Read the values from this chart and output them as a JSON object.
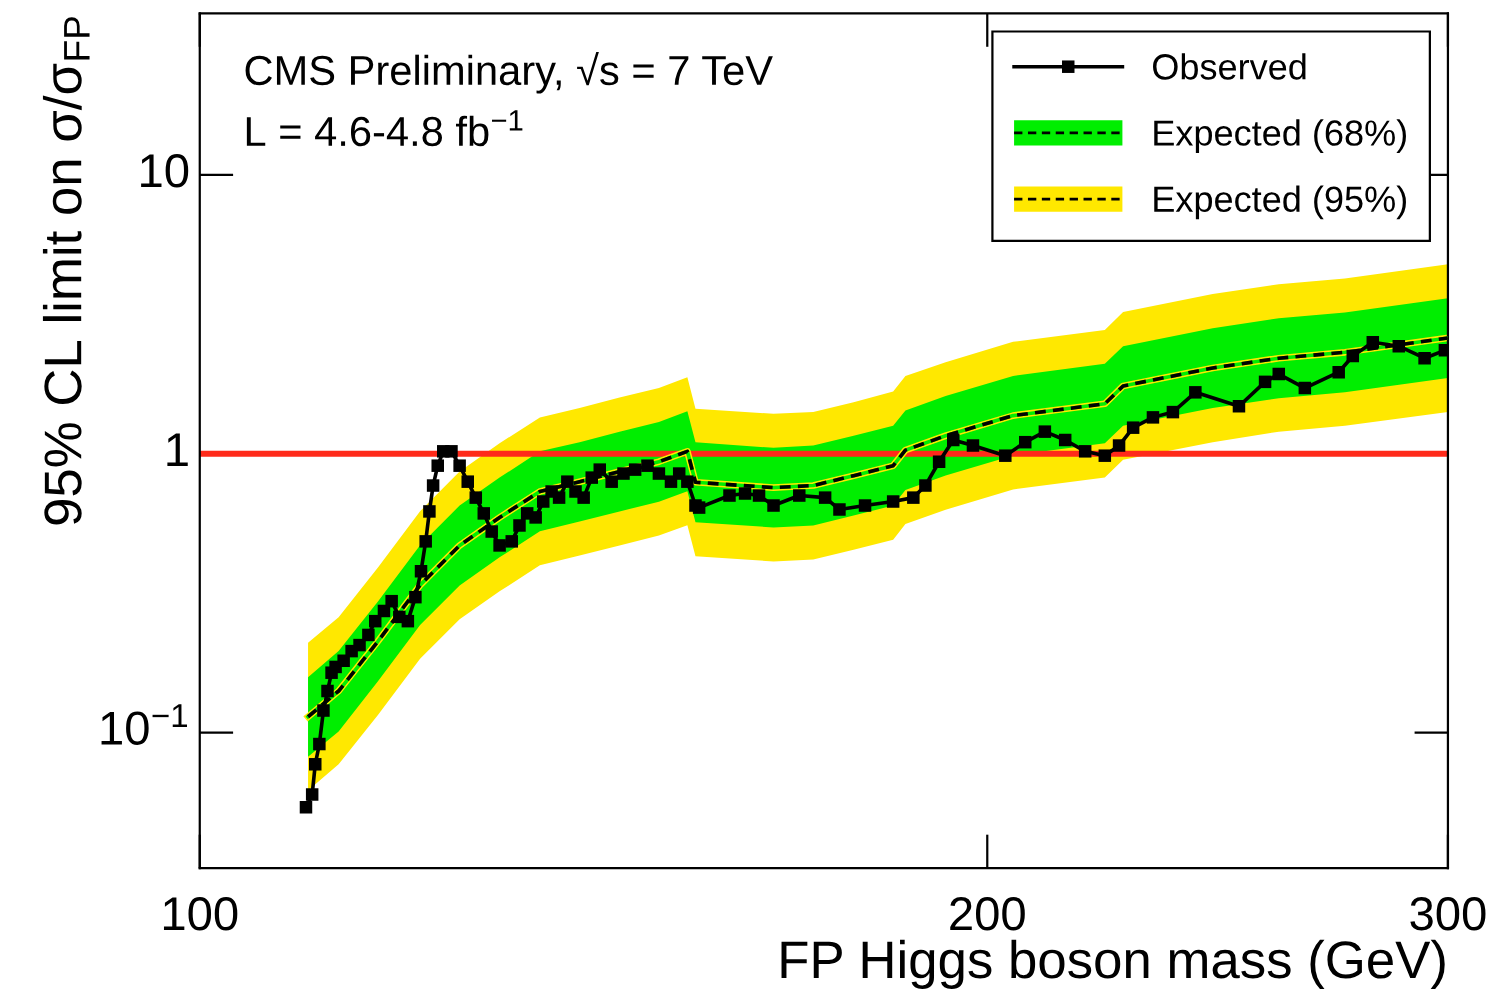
{
  "chart_data": {
    "type": "line",
    "xlabel": "FP Higgs boson mass (GeV)",
    "ylabel": "95% CL limit on σ/σ$_{FP}$",
    "annotations": [
      "CMS Preliminary, √s = 7 TeV",
      "L = 4.6-4.8 fb$^{−1}$"
    ],
    "log": "xy",
    "xlim": [
      100,
      300
    ],
    "ylim": [
      0.0327,
      37.9
    ],
    "xticks": [
      100,
      200,
      300
    ],
    "yticks": [
      {
        "value": 0.1,
        "label": "10$^{−1}$"
      },
      1,
      10
    ],
    "grid": false,
    "legend": "top right",
    "ref_lines": [
      {
        "axis": "y",
        "value": 1,
        "color": "#ff2a1a",
        "line_style": "solid"
      }
    ],
    "series": [
      {
        "name": "Expected (95%)",
        "type": "line",
        "line_style": "solid",
        "color": "#ffe800",
        "x": [
          110,
          113,
          117,
          121.4,
          125.7,
          130.2,
          134.9,
          139.7,
          144.7,
          149.8,
          153.6,
          154.7,
          165.7,
          171.6,
          177.8,
          184.1,
          186.1,
          192.8,
          204.6,
          221.8,
          225.4,
          243.9,
          258.5,
          274,
          300
        ],
        "values": [
          0.114,
          0.141,
          0.213,
          0.338,
          0.469,
          0.591,
          0.732,
          0.794,
          0.863,
          0.936,
          1.02,
          0.79,
          0.756,
          0.769,
          0.834,
          0.906,
          1.03,
          1.16,
          1.37,
          1.51,
          1.75,
          2.03,
          2.2,
          2.31,
          2.6
        ],
        "lower": [
          0.062,
          0.077,
          0.116,
          0.184,
          0.255,
          0.321,
          0.398,
          0.432,
          0.469,
          0.509,
          0.554,
          0.429,
          0.411,
          0.418,
          0.453,
          0.492,
          0.56,
          0.63,
          0.745,
          0.821,
          0.951,
          1.1,
          1.2,
          1.26,
          1.41
        ],
        "upper": [
          0.21,
          0.259,
          0.392,
          0.622,
          0.863,
          1.09,
          1.35,
          1.46,
          1.59,
          1.72,
          1.88,
          1.45,
          1.39,
          1.41,
          1.53,
          1.67,
          1.9,
          2.13,
          2.52,
          2.78,
          3.22,
          3.74,
          4.05,
          4.25,
          4.78
        ]
      },
      {
        "name": "Expected (68%)",
        "type": "line",
        "line_style": "solid",
        "color": "#00ee00",
        "x": [
          110,
          113,
          117,
          121.4,
          125.7,
          130.2,
          134.9,
          139.7,
          144.7,
          149.8,
          153.6,
          154.7,
          165.7,
          171.6,
          177.8,
          184.1,
          186.1,
          192.8,
          204.6,
          221.8,
          225.4,
          243.9,
          258.5,
          274,
          300
        ],
        "values": [
          0.114,
          0.141,
          0.213,
          0.338,
          0.469,
          0.591,
          0.732,
          0.794,
          0.863,
          0.936,
          1.02,
          0.79,
          0.756,
          0.769,
          0.834,
          0.906,
          1.03,
          1.16,
          1.37,
          1.51,
          1.75,
          2.03,
          2.2,
          2.31,
          2.6
        ],
        "lower": [
          0.082,
          0.101,
          0.153,
          0.243,
          0.337,
          0.425,
          0.527,
          0.571,
          0.621,
          0.673,
          0.734,
          0.568,
          0.544,
          0.553,
          0.6,
          0.652,
          0.741,
          0.835,
          0.986,
          1.09,
          1.26,
          1.46,
          1.58,
          1.66,
          1.87
        ],
        "upper": [
          0.158,
          0.196,
          0.296,
          0.47,
          0.652,
          0.821,
          1.02,
          1.1,
          1.2,
          1.3,
          1.42,
          1.1,
          1.05,
          1.07,
          1.16,
          1.26,
          1.43,
          1.61,
          1.9,
          2.1,
          2.43,
          2.82,
          3.06,
          3.21,
          3.61
        ]
      },
      {
        "type": "line",
        "line_style": "dashed",
        "color": "#000000",
        "x": [
          110,
          113,
          117,
          121.4,
          125.7,
          130.2,
          134.9,
          139.7,
          144.7,
          149.8,
          153.6,
          154.7,
          165.7,
          171.6,
          177.8,
          184.1,
          186.1,
          192.8,
          204.6,
          221.8,
          225.4,
          243.9,
          258.5,
          274,
          300
        ],
        "values": [
          0.114,
          0.141,
          0.213,
          0.338,
          0.469,
          0.591,
          0.732,
          0.794,
          0.863,
          0.936,
          1.02,
          0.79,
          0.756,
          0.769,
          0.834,
          0.906,
          1.03,
          1.16,
          1.37,
          1.51,
          1.75,
          2.03,
          2.2,
          2.31,
          2.6
        ]
      },
      {
        "name": "Observed",
        "line_style": "solid",
        "marker": "square",
        "color": "#000000",
        "x": [
          109.8,
          110.4,
          110.7,
          111.1,
          111.5,
          111.9,
          112.3,
          112.7,
          113.5,
          114.3,
          115.1,
          116,
          116.7,
          117.6,
          118.4,
          119.2,
          120.1,
          120.9,
          121.5,
          122,
          122.4,
          122.8,
          123.3,
          123.9,
          124.8,
          125.7,
          126.6,
          127.5,
          128.4,
          129.3,
          130.2,
          131.6,
          132.5,
          133.4,
          134.4,
          135.3,
          136.3,
          137.2,
          138.2,
          139.2,
          140.2,
          141.2,
          142.2,
          143.7,
          145.2,
          146.7,
          148.3,
          149.8,
          151.4,
          152.5,
          153.6,
          154.7,
          155.2,
          159.4,
          161.6,
          163.6,
          165.7,
          169.5,
          173.4,
          175.6,
          179.6,
          184.1,
          187.4,
          189.4,
          191.7,
          194.1,
          197.5,
          203.2,
          206.8,
          210.4,
          214.2,
          218,
          221.8,
          224.6,
          227.4,
          231.4,
          235.5,
          240.2,
          249.6,
          255.4,
          258.5,
          264.5,
          272.5,
          275.9,
          280.8,
          287.3,
          293.9,
          299.2
        ],
        "values": [
          0.054,
          0.06,
          0.077,
          0.091,
          0.12,
          0.141,
          0.164,
          0.172,
          0.181,
          0.196,
          0.206,
          0.224,
          0.251,
          0.273,
          0.296,
          0.26,
          0.251,
          0.306,
          0.379,
          0.485,
          0.621,
          0.769,
          0.906,
          1.02,
          1.02,
          0.906,
          0.794,
          0.696,
          0.611,
          0.526,
          0.469,
          0.485,
          0.553,
          0.611,
          0.591,
          0.674,
          0.732,
          0.696,
          0.794,
          0.732,
          0.696,
          0.821,
          0.877,
          0.794,
          0.849,
          0.877,
          0.906,
          0.849,
          0.794,
          0.849,
          0.794,
          0.652,
          0.641,
          0.708,
          0.72,
          0.708,
          0.652,
          0.708,
          0.696,
          0.631,
          0.652,
          0.674,
          0.696,
          0.769,
          0.936,
          1.12,
          1.07,
          0.984,
          1.1,
          1.2,
          1.12,
          1.02,
          0.984,
          1.07,
          1.24,
          1.35,
          1.41,
          1.66,
          1.48,
          1.81,
          1.93,
          1.72,
          1.96,
          2.24,
          2.51,
          2.43,
          2.2,
          2.35
        ]
      }
    ]
  }
}
